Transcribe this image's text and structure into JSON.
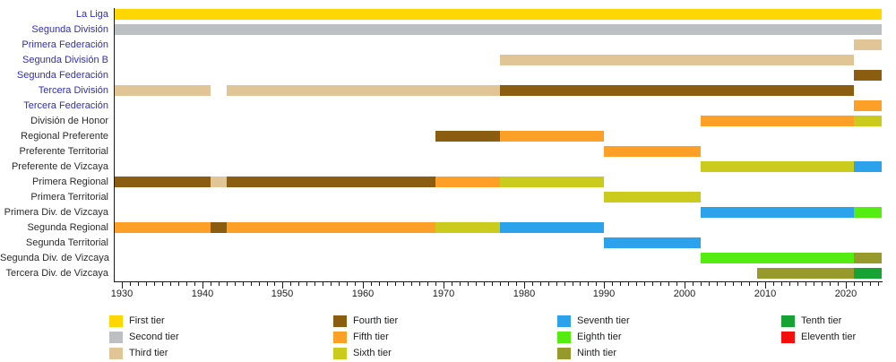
{
  "chart_data": {
    "type": "bar",
    "subtype": "timeline-gantt",
    "title": "",
    "x_axis": {
      "start": 1929,
      "end": 2024.5,
      "major_ticks": [
        1930,
        1940,
        1950,
        1960,
        1970,
        1980,
        1990,
        2000,
        2010,
        2020
      ],
      "minor_tick_interval": 1,
      "grid": false
    },
    "tiers": [
      {
        "id": 1,
        "label": "First tier",
        "color": "#FFD700"
      },
      {
        "id": 2,
        "label": "Second tier",
        "color": "#BDC0C3"
      },
      {
        "id": 3,
        "label": "Third tier",
        "color": "#E2C596"
      },
      {
        "id": 4,
        "label": "Fourth tier",
        "color": "#8A5D10"
      },
      {
        "id": 5,
        "label": "Fifth tier",
        "color": "#FEA028"
      },
      {
        "id": 6,
        "label": "Sixth tier",
        "color": "#CBCB1D"
      },
      {
        "id": 7,
        "label": "Seventh tier",
        "color": "#2CA2EC"
      },
      {
        "id": 8,
        "label": "Eighth tier",
        "color": "#55EC11"
      },
      {
        "id": 9,
        "label": "Ninth tier",
        "color": "#97992B"
      },
      {
        "id": 10,
        "label": "Tenth tier",
        "color": "#17A334"
      },
      {
        "id": 11,
        "label": "Eleventh tier",
        "color": "#F60D0D"
      }
    ],
    "rows": [
      {
        "label": "La Liga",
        "link": true,
        "segments": [
          {
            "from": 1929,
            "to": "present",
            "tier": 1
          }
        ]
      },
      {
        "label": "Segunda División",
        "link": true,
        "segments": [
          {
            "from": 1929,
            "to": "present",
            "tier": 2
          }
        ]
      },
      {
        "label": "Primera Federación",
        "link": true,
        "segments": [
          {
            "from": 2021,
            "to": "present",
            "tier": 3
          }
        ]
      },
      {
        "label": "Segunda División B",
        "link": true,
        "segments": [
          {
            "from": 1977,
            "to": 2021,
            "tier": 3
          }
        ]
      },
      {
        "label": "Segunda Federación",
        "link": true,
        "segments": [
          {
            "from": 2021,
            "to": "present",
            "tier": 4
          }
        ]
      },
      {
        "label": "Tercera División",
        "link": true,
        "segments": [
          {
            "from": 1929,
            "to": 1941,
            "tier": 3
          },
          {
            "from": 1943,
            "to": 1977,
            "tier": 3
          },
          {
            "from": 1977,
            "to": 2021,
            "tier": 4
          }
        ]
      },
      {
        "label": "Tercera Federación",
        "link": true,
        "segments": [
          {
            "from": 2021,
            "to": "present",
            "tier": 5
          }
        ]
      },
      {
        "label": "División de Honor",
        "link": false,
        "segments": [
          {
            "from": 2002,
            "to": 2021,
            "tier": 5
          },
          {
            "from": 2021,
            "to": "present",
            "tier": 6
          }
        ]
      },
      {
        "label": "Regional Preferente",
        "link": false,
        "segments": [
          {
            "from": 1969,
            "to": 1977,
            "tier": 4
          },
          {
            "from": 1977,
            "to": 1990,
            "tier": 5
          }
        ]
      },
      {
        "label": "Preferente Territorial",
        "link": false,
        "segments": [
          {
            "from": 1990,
            "to": 2002,
            "tier": 5
          }
        ]
      },
      {
        "label": "Preferente de Vizcaya",
        "link": false,
        "segments": [
          {
            "from": 2002,
            "to": 2021,
            "tier": 6
          },
          {
            "from": 2021,
            "to": "present",
            "tier": 7
          }
        ]
      },
      {
        "label": "Primera Regional",
        "link": false,
        "segments": [
          {
            "from": 1929,
            "to": 1941,
            "tier": 4
          },
          {
            "from": 1941,
            "to": 1943,
            "tier": 3
          },
          {
            "from": 1943,
            "to": 1969,
            "tier": 4
          },
          {
            "from": 1969,
            "to": 1977,
            "tier": 5
          },
          {
            "from": 1977,
            "to": 1990,
            "tier": 6
          }
        ]
      },
      {
        "label": "Primera Territorial",
        "link": false,
        "segments": [
          {
            "from": 1990,
            "to": 2002,
            "tier": 6
          }
        ]
      },
      {
        "label": "Primera Div. de Vizcaya",
        "link": false,
        "segments": [
          {
            "from": 2002,
            "to": 2021,
            "tier": 7
          },
          {
            "from": 2021,
            "to": "present",
            "tier": 8
          }
        ]
      },
      {
        "label": "Segunda Regional",
        "link": false,
        "segments": [
          {
            "from": 1929,
            "to": 1941,
            "tier": 5
          },
          {
            "from": 1941,
            "to": 1943,
            "tier": 4
          },
          {
            "from": 1943,
            "to": 1969,
            "tier": 5
          },
          {
            "from": 1969,
            "to": 1977,
            "tier": 6
          },
          {
            "from": 1977,
            "to": 1990,
            "tier": 7
          }
        ]
      },
      {
        "label": "Segunda Territorial",
        "link": false,
        "segments": [
          {
            "from": 1990,
            "to": 2002,
            "tier": 7
          }
        ]
      },
      {
        "label": "Segunda Div. de Vizcaya",
        "link": false,
        "segments": [
          {
            "from": 2002,
            "to": 2021,
            "tier": 8
          },
          {
            "from": 2021,
            "to": "present",
            "tier": 9
          }
        ]
      },
      {
        "label": "Tercera Div. de Vizcaya",
        "link": false,
        "segments": [
          {
            "from": 2009,
            "to": 2021,
            "tier": 9
          },
          {
            "from": 2021,
            "to": "present",
            "tier": 10
          }
        ]
      }
    ],
    "legend": {
      "position": "bottom",
      "columns": [
        [
          0,
          1,
          2
        ],
        [
          3,
          4,
          5
        ],
        [
          6,
          7,
          8
        ],
        [
          9,
          10
        ]
      ]
    }
  }
}
